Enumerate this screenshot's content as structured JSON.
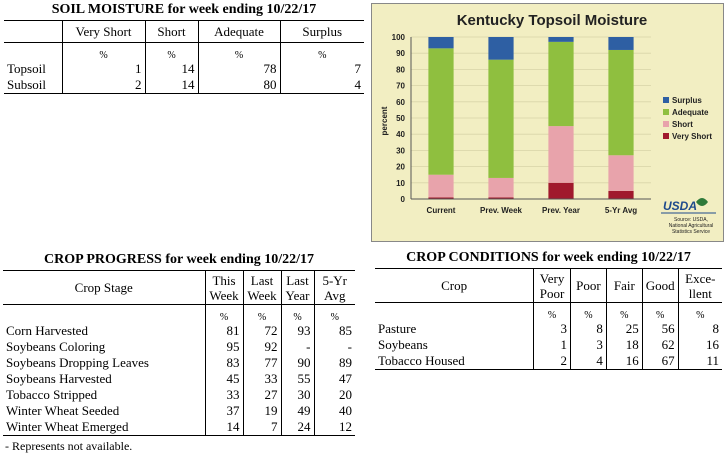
{
  "soil": {
    "title": "SOIL MOISTURE for week ending 10/22/17",
    "headers": [
      "Very Short",
      "Short",
      "Adequate",
      "Surplus"
    ],
    "unit": "%",
    "rows": [
      {
        "label": "Topsoil",
        "values": [
          "1",
          "14",
          "78",
          "7"
        ]
      },
      {
        "label": "Subsoil",
        "values": [
          "2",
          "14",
          "80",
          "4"
        ]
      }
    ]
  },
  "progress": {
    "title": "CROP PROGRESS for week ending 10/22/17",
    "stage_header": "Crop Stage",
    "headers": [
      [
        "This",
        "Week"
      ],
      [
        "Last",
        "Week"
      ],
      [
        "Last",
        "Year"
      ],
      [
        "5-Yr",
        "Avg"
      ]
    ],
    "unit": "%",
    "rows": [
      {
        "label": "Corn Harvested",
        "values": [
          "81",
          "72",
          "93",
          "85"
        ]
      },
      {
        "label": "Soybeans Coloring",
        "values": [
          "95",
          "92",
          "-",
          "-"
        ]
      },
      {
        "label": "Soybeans Dropping Leaves",
        "values": [
          "83",
          "77",
          "90",
          "89"
        ]
      },
      {
        "label": "Soybeans Harvested",
        "values": [
          "45",
          "33",
          "55",
          "47"
        ]
      },
      {
        "label": "Tobacco Stripped",
        "values": [
          "33",
          "27",
          "30",
          "20"
        ]
      },
      {
        "label": "Winter Wheat Seeded",
        "values": [
          "37",
          "19",
          "49",
          "40"
        ]
      },
      {
        "label": "Winter Wheat Emerged",
        "values": [
          "14",
          "7",
          "24",
          "12"
        ]
      }
    ],
    "note": "- Represents not available."
  },
  "conditions": {
    "title": "CROP CONDITIONS for week ending 10/22/17",
    "crop_header": "Crop",
    "headers": [
      [
        "Very",
        "Poor"
      ],
      [
        "Poor"
      ],
      [
        "Fair"
      ],
      [
        "Good"
      ],
      [
        "Exce-",
        "llent"
      ]
    ],
    "unit": "%",
    "rows": [
      {
        "label": "Pasture",
        "values": [
          "3",
          "8",
          "25",
          "56",
          "8"
        ]
      },
      {
        "label": "Soybeans",
        "values": [
          "1",
          "3",
          "18",
          "62",
          "16"
        ]
      },
      {
        "label": "Tobacco Housed",
        "values": [
          "2",
          "4",
          "16",
          "67",
          "11"
        ]
      }
    ]
  },
  "chart_data": {
    "type": "bar",
    "stacked": true,
    "title": "Kentucky Topsoil Moisture",
    "ylabel": "percent",
    "ylim": [
      0,
      100
    ],
    "yticks": [
      0,
      10,
      20,
      30,
      40,
      50,
      60,
      70,
      80,
      90,
      100
    ],
    "categories": [
      "Current",
      "Prev. Week",
      "Prev. Year",
      "5-Yr Avg"
    ],
    "series": [
      {
        "name": "Very Short",
        "color": "#a0192d",
        "values": [
          1,
          1,
          10,
          5
        ]
      },
      {
        "name": "Short",
        "color": "#e8a3ab",
        "values": [
          14,
          12,
          35,
          22
        ]
      },
      {
        "name": "Adequate",
        "color": "#8fbf3f",
        "values": [
          78,
          73,
          52,
          65
        ]
      },
      {
        "name": "Surplus",
        "color": "#2e5fa3",
        "values": [
          7,
          14,
          3,
          8
        ]
      }
    ],
    "legend_position": "right",
    "background": "#f2eec2",
    "logo_text": "USDA",
    "source": [
      "Source: USDA,",
      "National Agricultural",
      "Statistics Service"
    ]
  }
}
